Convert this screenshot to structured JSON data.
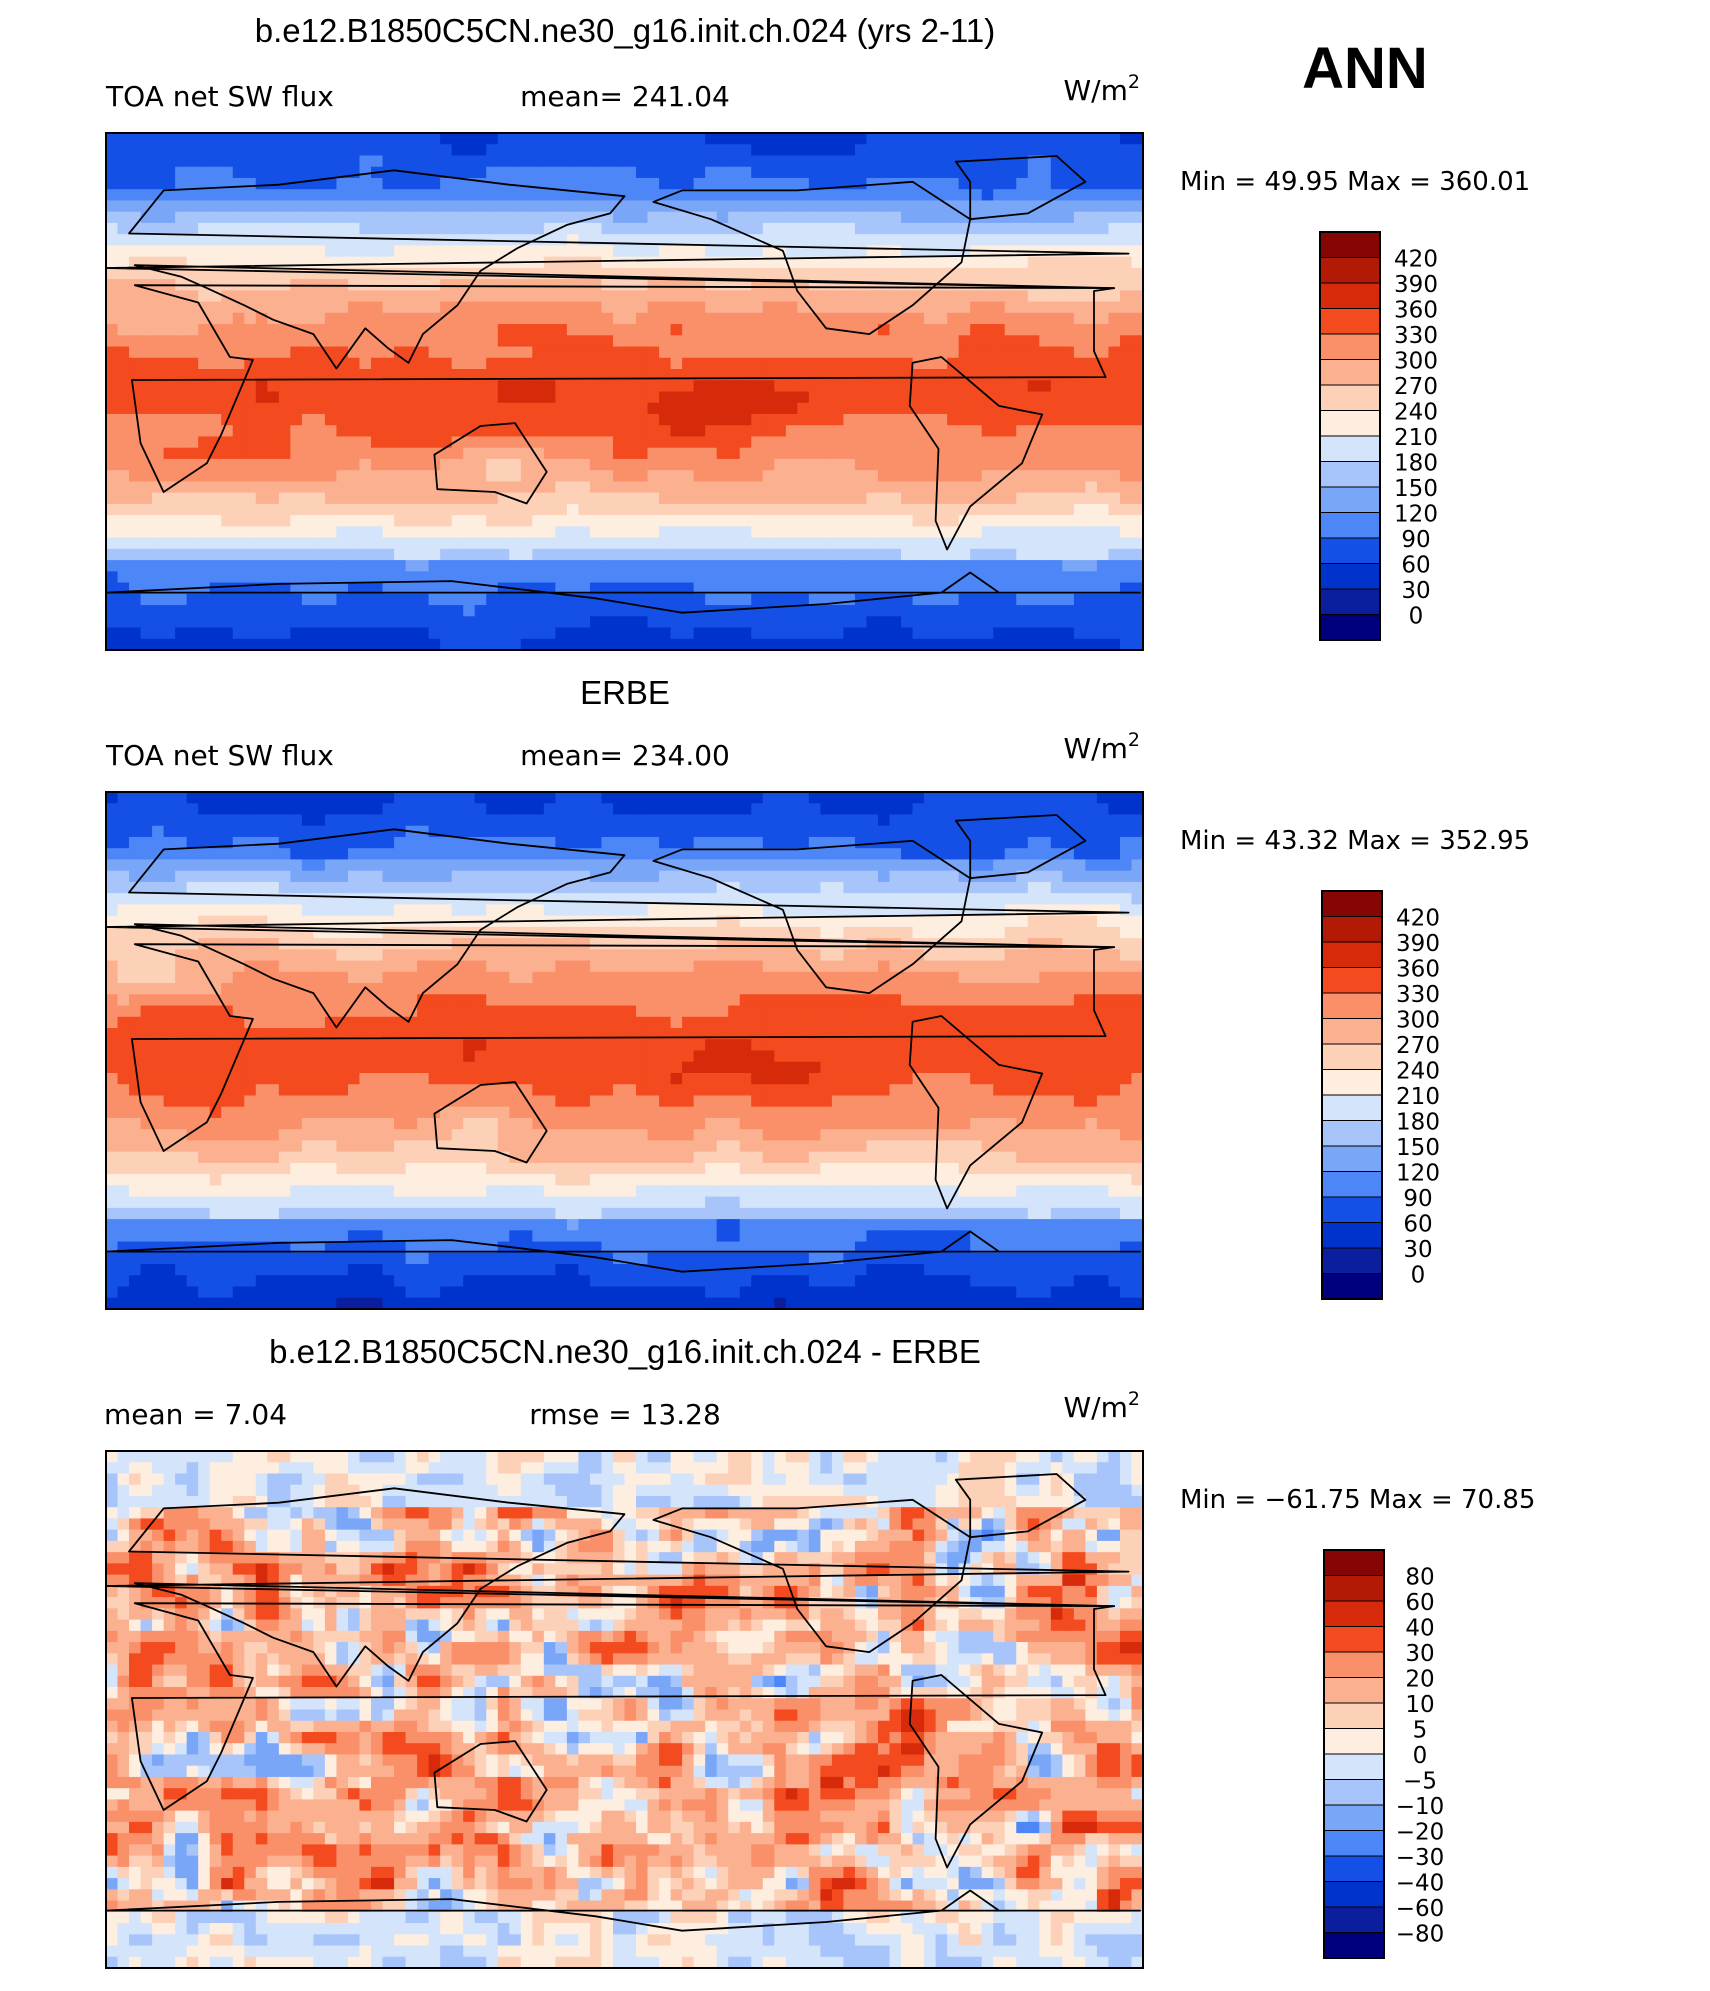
{
  "season": "ANN",
  "colors": {
    "abs_scale": [
      "#00007f",
      "#0a1e9e",
      "#0033cc",
      "#1450e6",
      "#2f6bf5",
      "#4d86f7",
      "#7aa6f8",
      "#a7c5fa",
      "#d3e4fb",
      "#fdeee0",
      "#fdd0b8",
      "#fbb090",
      "#f99069",
      "#f66d45",
      "#f34a1f",
      "#d62a0a",
      "#b31a05",
      "#860606"
    ],
    "diff_scale": [
      "#00007f",
      "#0a1e9e",
      "#0033cc",
      "#1450e6",
      "#2f6bf5",
      "#4d86f7",
      "#7aa6f8",
      "#a7c5fa",
      "#d3e4fb",
      "#fdeee0",
      "#fdd0b8",
      "#fbb090",
      "#f99069",
      "#f66d45",
      "#f34a1f",
      "#d62a0a",
      "#b31a05",
      "#860606"
    ]
  },
  "chart_data": [
    {
      "type": "heatmap",
      "id": "model",
      "title": "b.e12.B1850C5CN.ne30_g16.init.ch.024 (yrs 2-11)",
      "left_label": "TOA  net  SW  flux",
      "center_label": "mean=  241.04",
      "units": "W/m",
      "units_sup": "2",
      "min_max": "Min  =    49.95  Max  =  360.01",
      "colorbar_levels": [
        "420",
        "390",
        "360",
        "330",
        "300",
        "270",
        "240",
        "210",
        "180",
        "150",
        "120",
        "90",
        "60",
        "30",
        "0"
      ],
      "palette": "abs",
      "field": "model"
    },
    {
      "type": "heatmap",
      "id": "obs",
      "title": "ERBE",
      "left_label": "TOA  net  SW  flux",
      "center_label": "mean=  234.00",
      "units": "W/m",
      "units_sup": "2",
      "min_max": "Min  =    43.32  Max  =  352.95",
      "colorbar_levels": [
        "420",
        "390",
        "360",
        "330",
        "300",
        "270",
        "240",
        "210",
        "180",
        "150",
        "120",
        "90",
        "60",
        "30",
        "0"
      ],
      "palette": "abs",
      "field": "obs"
    },
    {
      "type": "heatmap",
      "id": "diff",
      "title": "b.e12.B1850C5CN.ne30_g16.init.ch.024 - ERBE",
      "left_label": "mean  =      7.04",
      "center_label": "rmse  =     13.28",
      "units": "W/m",
      "units_sup": "2",
      "min_max": "Min  =  −61.75  Max  =     70.85",
      "colorbar_levels": [
        "80",
        "60",
        "40",
        "30",
        "20",
        "10",
        "5",
        "0",
        "−5",
        "−10",
        "−20",
        "−30",
        "−40",
        "−60",
        "−80"
      ],
      "palette": "diff",
      "field": "diff"
    }
  ]
}
